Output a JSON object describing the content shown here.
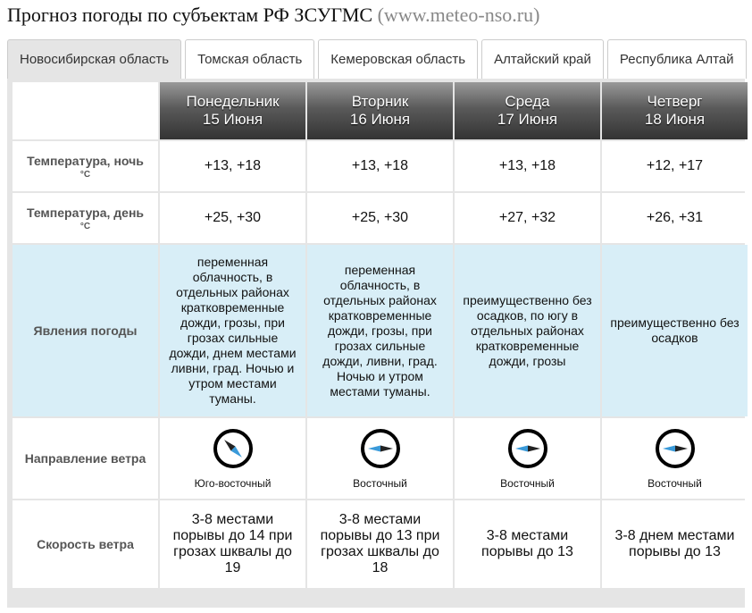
{
  "header": {
    "title": "Прогноз погоды по субъектам РФ ЗСУГМС",
    "site": "(www.meteo-nso.ru)"
  },
  "tabs": [
    "Новосибирская область",
    "Томская область",
    "Кемеровская область",
    "Алтайский край",
    "Республика Алтай"
  ],
  "table": {
    "days": [
      {
        "name": "Понедельник",
        "date": "15 Июня"
      },
      {
        "name": "Вторник",
        "date": "16 Июня"
      },
      {
        "name": "Среда",
        "date": "17 Июня"
      },
      {
        "name": "Четверг",
        "date": "18 Июня"
      }
    ],
    "rows": [
      {
        "label": "Температура, ночь",
        "unit": "°C",
        "cells": [
          "+13, +18",
          "+13, +18",
          "+13, +18",
          "+12, +17"
        ]
      },
      {
        "label": "Температура, день",
        "unit": "°C",
        "cells": [
          "+25, +30",
          "+25, +30",
          "+27, +32",
          "+26, +31"
        ]
      },
      {
        "label": "Явления погоды",
        "cells": [
          "переменная облачность, в отдельных районах кратковременные дожди, грозы, при грозах сильные дожди, днем местами ливни, град. Ночью и утром местами туманы.",
          "переменная облачность, в отдельных районах кратковременные дожди, грозы, при грозах сильные дожди, ливни, град. Ночью и утром местами туманы.",
          "преимущественно без осадков, по югу в отдельных районах кратковременные дожди, грозы",
          "преимущественно без осадков"
        ]
      },
      {
        "label": "Направление ветра",
        "cells": [
          "Юго-восточный",
          "Восточный",
          "Восточный",
          "Восточный"
        ]
      },
      {
        "label": "Скорость ветра",
        "cells": [
          "3-8 местами порывы до 14 при грозах шквалы до 19",
          "3-8 местами порывы до 13 при грозах шквалы до 18",
          "3-8 местами порывы до 13",
          "3-8 днем местами порывы до 13"
        ]
      }
    ]
  }
}
